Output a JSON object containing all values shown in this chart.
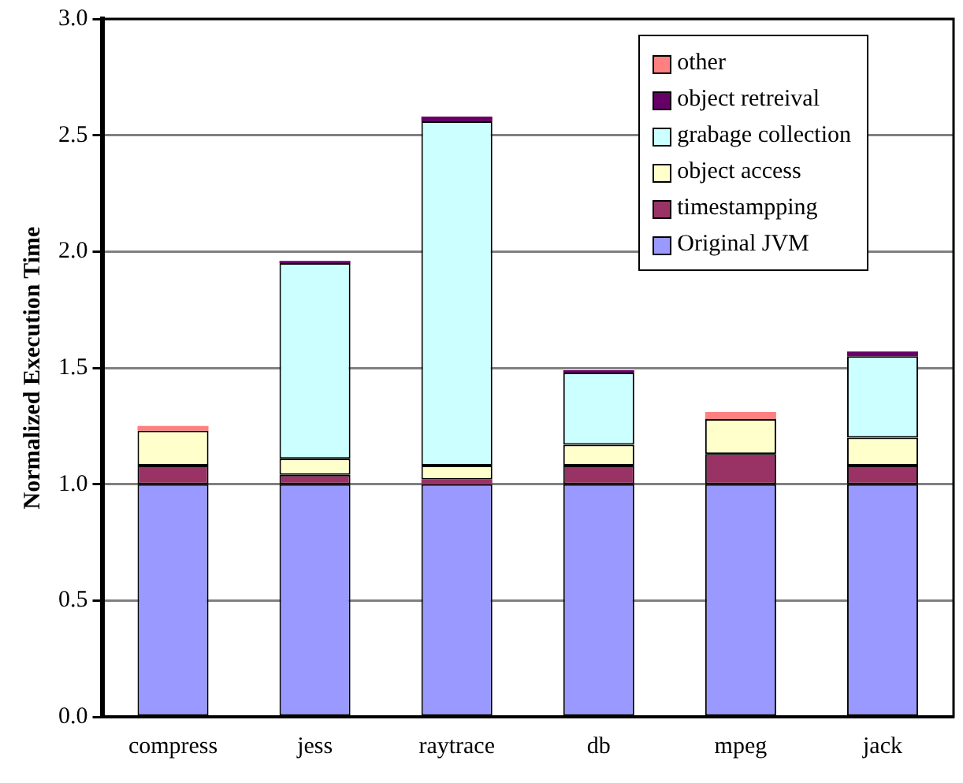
{
  "chart_data": {
    "type": "bar",
    "stacked": true,
    "ylabel": "Normalized Execution Time",
    "categories": [
      "compress",
      "jess",
      "raytrace",
      "db",
      "mpeg",
      "jack"
    ],
    "series": [
      {
        "name": "Original JVM",
        "color": "#9999ff",
        "values": [
          1.0,
          1.0,
          1.0,
          1.0,
          1.0,
          1.0
        ]
      },
      {
        "name": "timestampping",
        "color": "#993366",
        "values": [
          0.08,
          0.04,
          0.02,
          0.08,
          0.13,
          0.08
        ]
      },
      {
        "name": "object access",
        "color": "#ffffcc",
        "values": [
          0.15,
          0.07,
          0.06,
          0.09,
          0.15,
          0.12
        ]
      },
      {
        "name": "grabage collection",
        "color": "#ccffff",
        "values": [
          0,
          0.84,
          1.48,
          0.31,
          0,
          0.35
        ]
      },
      {
        "name": "object retreival",
        "color": "#660066",
        "values": [
          0,
          0.01,
          0.02,
          0.01,
          0,
          0.02
        ]
      },
      {
        "name": "other",
        "color": "#ff8080",
        "values": [
          0.02,
          0,
          0,
          0,
          0.03,
          0
        ]
      }
    ],
    "ylim": [
      0,
      3
    ],
    "yticks": [
      {
        "value": 0,
        "label": "0.0"
      },
      {
        "value": 0.5,
        "label": "0.5"
      },
      {
        "value": 1,
        "label": "1.0"
      },
      {
        "value": 1.5,
        "label": "1.5"
      },
      {
        "value": 2,
        "label": "2.0"
      },
      {
        "value": 2.5,
        "label": "2.5"
      },
      {
        "value": 3,
        "label": "3.0"
      }
    ],
    "grid": "y",
    "legend": "top right"
  }
}
